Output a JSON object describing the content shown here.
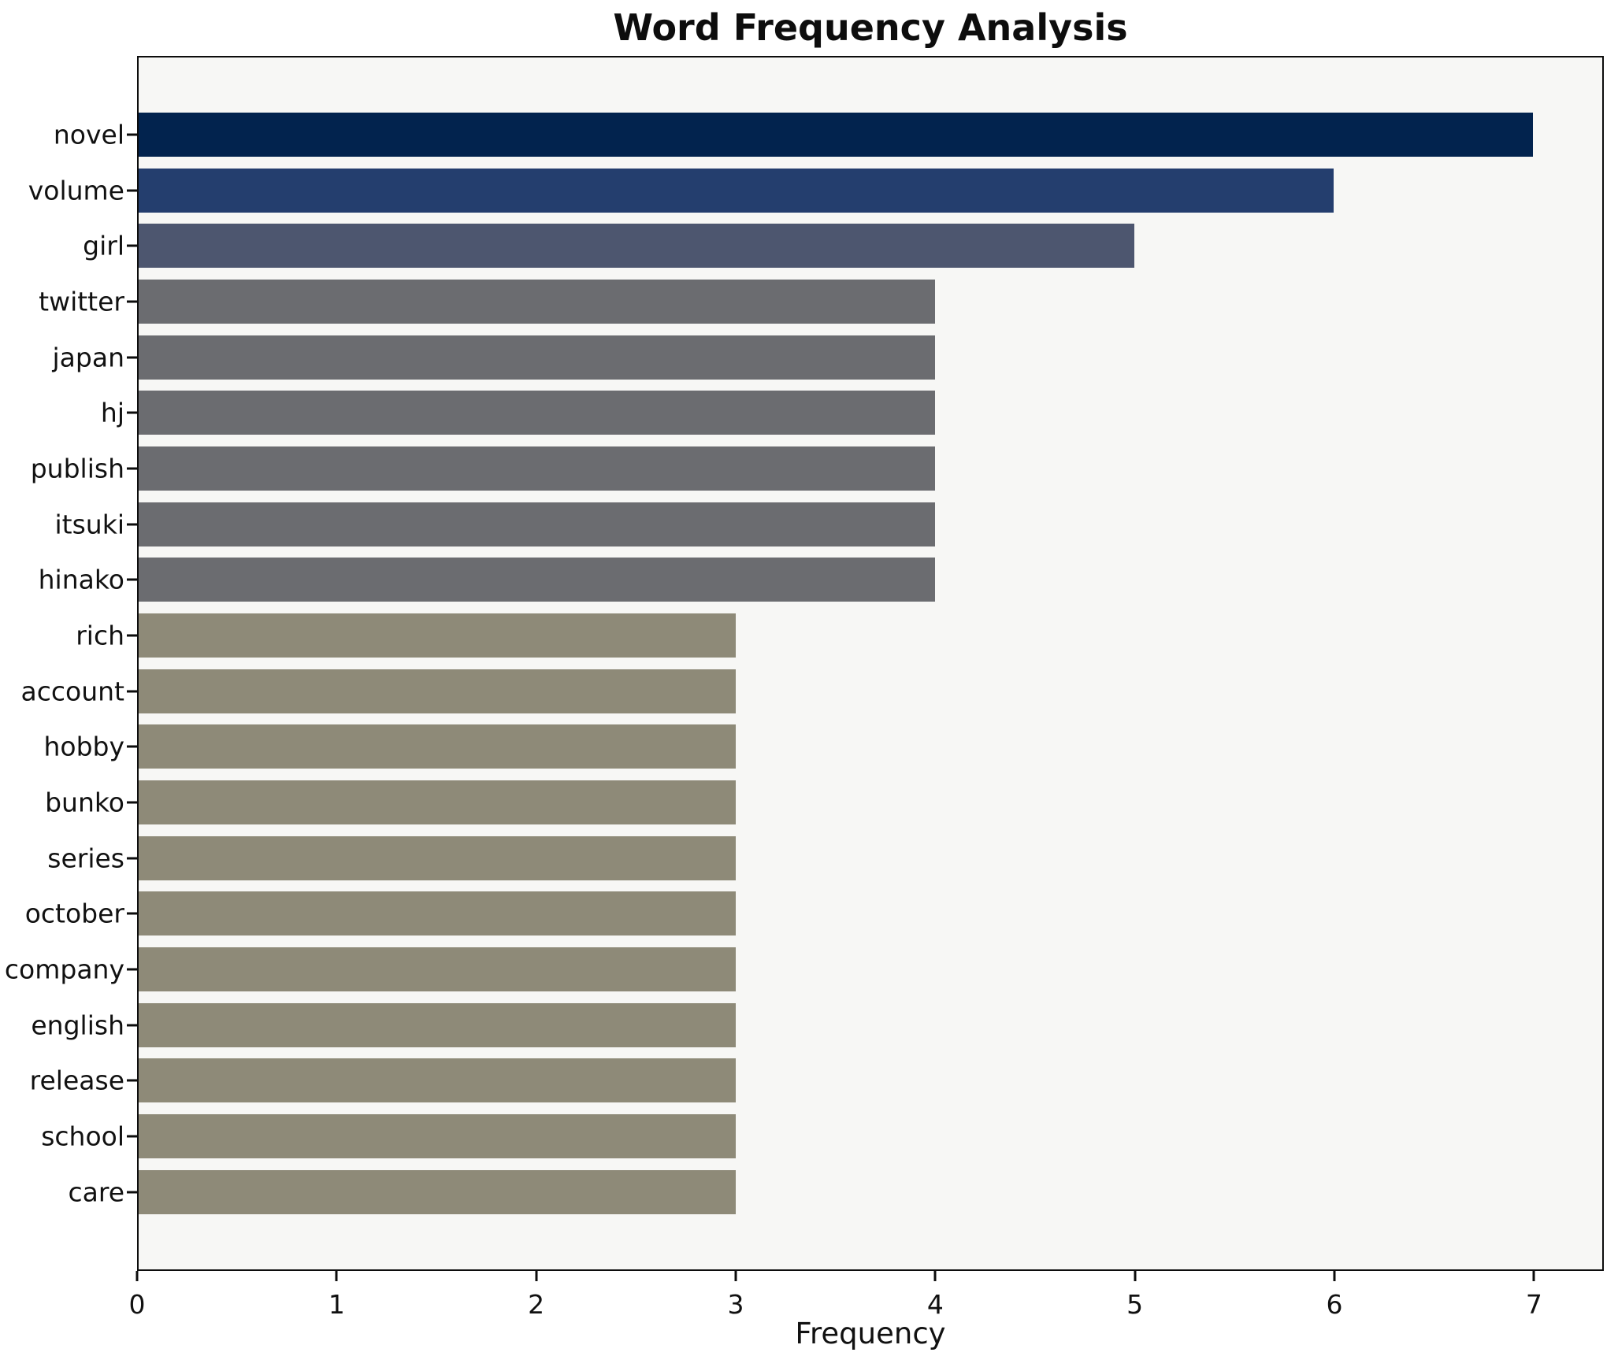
{
  "page": {
    "background": "#ffffff"
  },
  "chart_data": {
    "type": "bar",
    "orientation": "horizontal",
    "title": "Word Frequency Analysis",
    "xlabel": "Frequency",
    "ylabel": "",
    "categories": [
      "novel",
      "volume",
      "girl",
      "twitter",
      "japan",
      "hj",
      "publish",
      "itsuki",
      "hinako",
      "rich",
      "account",
      "hobby",
      "bunko",
      "series",
      "october",
      "company",
      "english",
      "release",
      "school",
      "care"
    ],
    "values": [
      7,
      6,
      5,
      4,
      4,
      4,
      4,
      4,
      4,
      3,
      3,
      3,
      3,
      3,
      3,
      3,
      3,
      3,
      3,
      3
    ],
    "bar_colors": [
      "#02234e",
      "#243e6e",
      "#4d566f",
      "#6b6c70",
      "#6b6c70",
      "#6b6c70",
      "#6b6c70",
      "#6b6c70",
      "#6b6c70",
      "#8e8a78",
      "#8e8a78",
      "#8e8a78",
      "#8e8a78",
      "#8e8a78",
      "#8e8a78",
      "#8e8a78",
      "#8e8a78",
      "#8e8a78",
      "#8e8a78",
      "#8e8a78"
    ],
    "xticks": [
      0,
      1,
      2,
      3,
      4,
      5,
      6,
      7
    ],
    "xlim": [
      0,
      7.35
    ],
    "grid": false,
    "legend": null,
    "plot_background": "#f7f7f5",
    "axis_color": "#0c0c0c"
  }
}
